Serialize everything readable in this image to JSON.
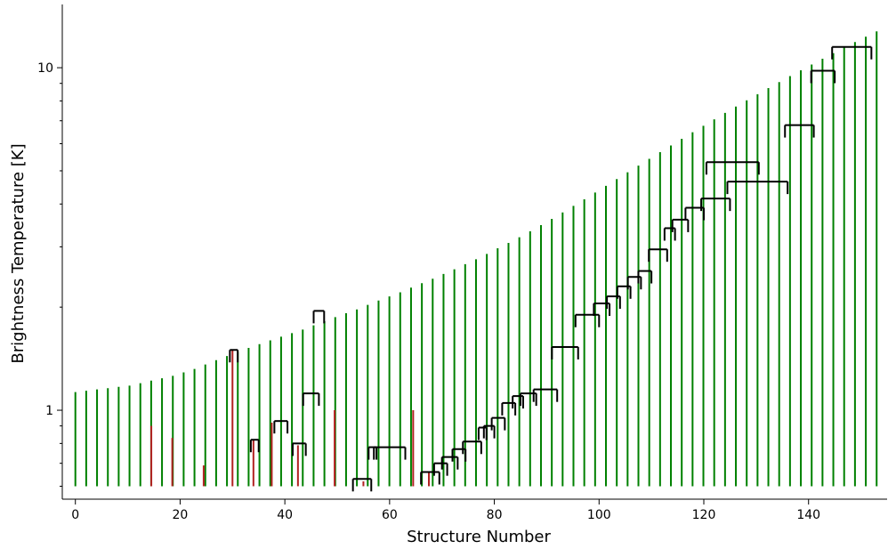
{
  "chart_data": {
    "type": "dendrogram",
    "xlabel": "Structure Number",
    "ylabel": "Brightness Temperature [K]",
    "yscale": "log",
    "xlim": [
      -2.5,
      155
    ],
    "ylim": [
      0.55,
      15.3
    ],
    "x_ticks": [
      0,
      20,
      40,
      60,
      80,
      100,
      120,
      140
    ],
    "y_ticks": [
      {
        "value": 1,
        "label": "1"
      },
      {
        "value": 10,
        "label": "10"
      }
    ],
    "y_minor_ticks": [
      0.6,
      0.7,
      0.8,
      0.9,
      2,
      3,
      4,
      5,
      6,
      7,
      8,
      9
    ],
    "baseline_value": 0.6,
    "grid": false,
    "legend": "none",
    "colors": {
      "leaf": "#008000",
      "isolated": "#b22222",
      "branch": "#000000"
    },
    "leaf_peaks": [
      1.13,
      1.14,
      1.15,
      1.16,
      1.17,
      1.18,
      1.2,
      1.22,
      1.24,
      1.26,
      1.29,
      1.32,
      1.36,
      1.4,
      1.44,
      1.48,
      1.52,
      1.56,
      1.6,
      1.64,
      1.68,
      1.72,
      1.77,
      1.82,
      1.87,
      1.92,
      1.97,
      2.03,
      2.09,
      2.15,
      2.21,
      2.28,
      2.35,
      2.42,
      2.5,
      2.58,
      2.67,
      2.76,
      2.86,
      2.97,
      3.08,
      3.2,
      3.33,
      3.47,
      3.62,
      3.78,
      3.95,
      4.13,
      4.32,
      4.52,
      4.73,
      4.95,
      5.18,
      5.42,
      5.67,
      5.93,
      6.2,
      6.48,
      6.77,
      7.07,
      7.38,
      7.7,
      8.03,
      8.37,
      8.72,
      9.08,
      9.45,
      9.83,
      10.22,
      10.62,
      11.03,
      11.45,
      11.88,
      12.32,
      12.77
    ],
    "isolated": [
      {
        "x": 14.5,
        "peak": 0.9
      },
      {
        "x": 18.5,
        "peak": 0.83
      },
      {
        "x": 24.5,
        "peak": 0.69
      },
      {
        "x": 30,
        "peak": 1.5
      },
      {
        "x": 34,
        "peak": 0.82
      },
      {
        "x": 37.5,
        "peak": 0.92
      },
      {
        "x": 42.5,
        "peak": 0.79
      },
      {
        "x": 49.5,
        "peak": 1.0
      },
      {
        "x": 55,
        "peak": 0.62
      },
      {
        "x": 64.5,
        "peak": 1.0
      },
      {
        "x": 67.5,
        "peak": 0.66
      }
    ],
    "branch_merges": [
      {
        "x1": 29.5,
        "x2": 31,
        "level": 1.5
      },
      {
        "x1": 33.5,
        "x2": 35,
        "level": 0.82
      },
      {
        "x1": 38,
        "x2": 40.5,
        "level": 0.93
      },
      {
        "x1": 41.5,
        "x2": 44,
        "level": 0.8
      },
      {
        "x1": 43.5,
        "x2": 46.5,
        "level": 1.12
      },
      {
        "x1": 45.5,
        "x2": 47.5,
        "level": 1.95
      },
      {
        "x1": 53,
        "x2": 56.5,
        "level": 0.63
      },
      {
        "x1": 56,
        "x2": 57.5,
        "level": 0.78
      },
      {
        "x1": 57,
        "x2": 63,
        "level": 0.78
      },
      {
        "x1": 66,
        "x2": 69.5,
        "level": 0.66
      },
      {
        "x1": 68.5,
        "x2": 71,
        "level": 0.7
      },
      {
        "x1": 70,
        "x2": 73,
        "level": 0.73
      },
      {
        "x1": 72,
        "x2": 74.5,
        "level": 0.77
      },
      {
        "x1": 74,
        "x2": 77.5,
        "level": 0.81
      },
      {
        "x1": 77,
        "x2": 78.5,
        "level": 0.89
      },
      {
        "x1": 78,
        "x2": 80,
        "level": 0.9
      },
      {
        "x1": 79.5,
        "x2": 82,
        "level": 0.95
      },
      {
        "x1": 81.5,
        "x2": 84,
        "level": 1.05
      },
      {
        "x1": 83.5,
        "x2": 85.5,
        "level": 1.1
      },
      {
        "x1": 85,
        "x2": 88,
        "level": 1.12
      },
      {
        "x1": 87.5,
        "x2": 92,
        "level": 1.15
      },
      {
        "x1": 91,
        "x2": 96,
        "level": 1.53
      },
      {
        "x1": 95.5,
        "x2": 100,
        "level": 1.9
      },
      {
        "x1": 99,
        "x2": 102,
        "level": 2.05
      },
      {
        "x1": 101.5,
        "x2": 104,
        "level": 2.15
      },
      {
        "x1": 103.5,
        "x2": 106,
        "level": 2.3
      },
      {
        "x1": 105.5,
        "x2": 108,
        "level": 2.45
      },
      {
        "x1": 107.5,
        "x2": 110,
        "level": 2.55
      },
      {
        "x1": 109.5,
        "x2": 113,
        "level": 2.95
      },
      {
        "x1": 112.5,
        "x2": 114.5,
        "level": 3.4
      },
      {
        "x1": 114,
        "x2": 117,
        "level": 3.6
      },
      {
        "x1": 116.5,
        "x2": 120,
        "level": 3.9
      },
      {
        "x1": 119.5,
        "x2": 125,
        "level": 4.15
      },
      {
        "x1": 124.5,
        "x2": 136,
        "level": 4.65
      },
      {
        "x1": 120.5,
        "x2": 130.5,
        "level": 5.3
      },
      {
        "x1": 135.5,
        "x2": 141,
        "level": 6.8
      },
      {
        "x1": 140.5,
        "x2": 145,
        "level": 9.8
      },
      {
        "x1": 144.5,
        "x2": 152,
        "level": 11.5
      }
    ]
  }
}
